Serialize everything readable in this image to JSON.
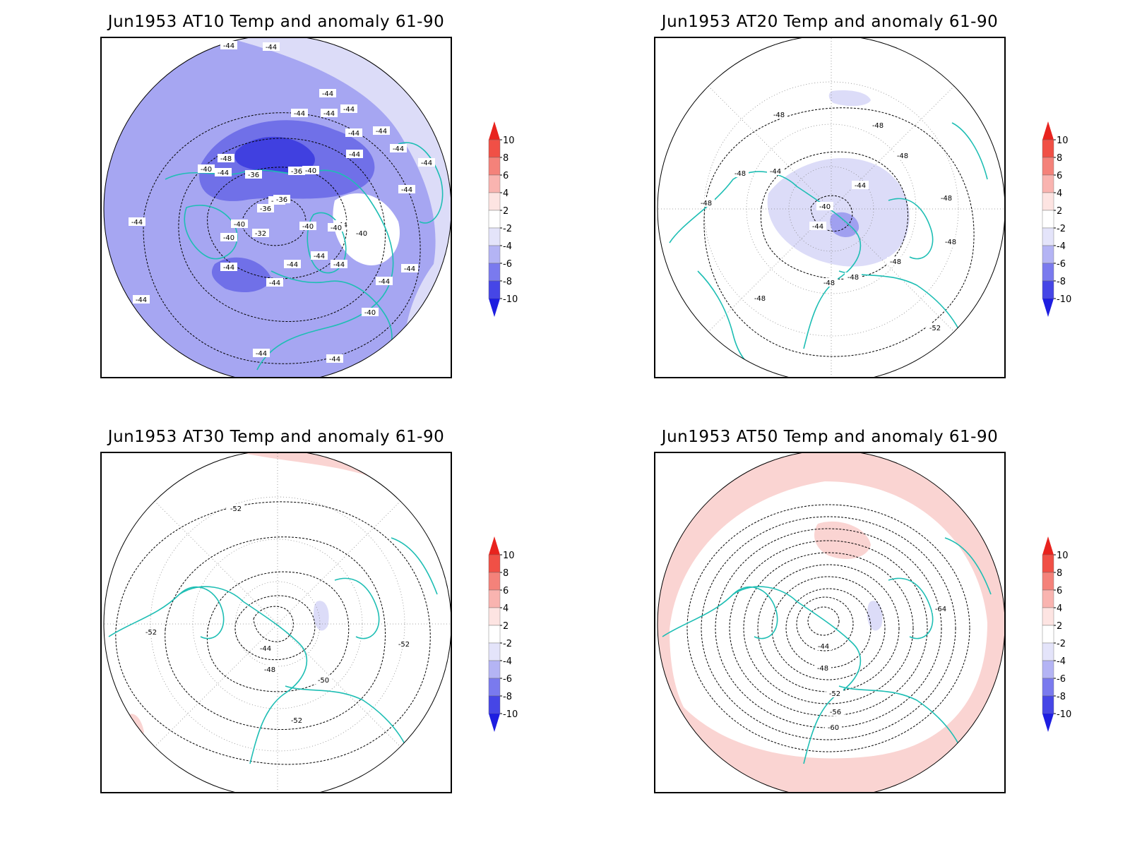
{
  "panels": [
    {
      "title": "Jun1953 AT10 Temp and anomaly 61-90",
      "contour_labels": [
        "-44",
        "-44",
        "-44",
        "-44",
        "-44",
        "-44",
        "-44",
        "-44",
        "-44",
        "-44",
        "-44",
        "-48",
        "-40",
        "-44",
        "-36",
        "-36",
        "-40",
        "-36",
        "-36",
        "-36",
        "-40",
        "-40",
        "-32",
        "-40",
        "-44",
        "-40",
        "-44",
        "-44",
        "-44",
        "-44",
        "-44",
        "-40",
        "-44",
        "-44",
        "-44",
        "-40",
        "-44",
        "-44",
        "-44",
        "-44"
      ]
    },
    {
      "title": "Jun1953 AT20 Temp and anomaly 61-90",
      "contour_labels": [
        "-48",
        "-48",
        "-48",
        "-48",
        "-44",
        "-44",
        "-48",
        "-40",
        "-44",
        "-48",
        "-48",
        "-48",
        "-48",
        "-48",
        "-48",
        "-52"
      ]
    },
    {
      "title": "Jun1953 AT30 Temp and anomaly 61-90",
      "contour_labels": [
        "-52",
        "-52",
        "-44",
        "-48",
        "-50",
        "-52",
        "-52"
      ]
    },
    {
      "title": "Jun1953 AT50 Temp and anomaly 61-90",
      "contour_labels": [
        "-44",
        "-48",
        "-52",
        "-56",
        "-60",
        "-64"
      ]
    }
  ],
  "colorbar": {
    "labels": [
      "10",
      "8",
      "6",
      "4",
      "2",
      "-2",
      "-4",
      "-6",
      "-8",
      "-10"
    ],
    "colors": [
      "#e8231e",
      "#f05046",
      "#f4827a",
      "#f9b4b0",
      "#fde4e2",
      "#ffffff",
      "#e4e4fa",
      "#b4b4f4",
      "#7a7aee",
      "#4646e6",
      "#1e1ee0"
    ]
  },
  "colors": {
    "coastline": "#1ebeb4",
    "contour": "#000000",
    "anomaly_-2_-4": "#dcdcf8",
    "anomaly_-4_-6": "#a0a0f0",
    "anomaly_-6_-8": "#7070e8",
    "anomaly_-8_-10": "#4040e0",
    "anomaly_2_4": "#fad4d2"
  }
}
